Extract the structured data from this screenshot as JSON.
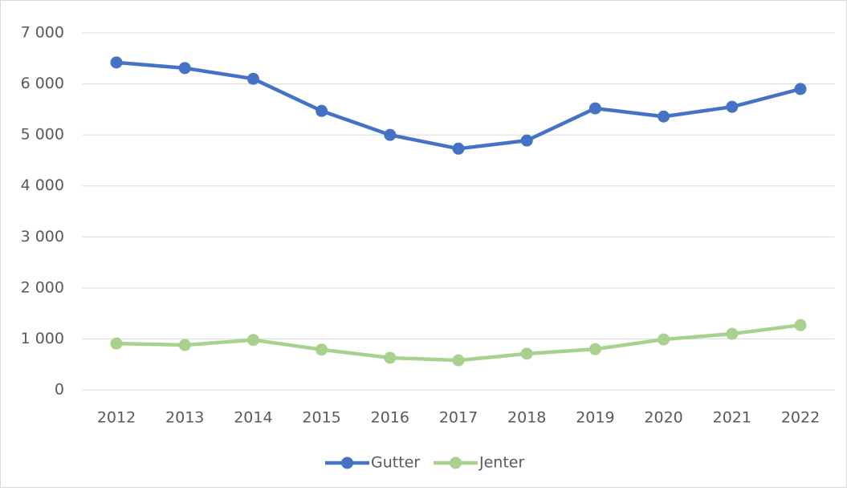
{
  "chart_data": {
    "type": "line",
    "categories": [
      "2012",
      "2013",
      "2014",
      "2015",
      "2016",
      "2017",
      "2018",
      "2019",
      "2020",
      "2021",
      "2022"
    ],
    "series": [
      {
        "name": "Gutter",
        "color": "#4472c4",
        "values": [
          6420,
          6310,
          6100,
          5470,
          5000,
          4730,
          4890,
          5520,
          5360,
          5550,
          5900
        ]
      },
      {
        "name": "Jenter",
        "color": "#a9d18e",
        "values": [
          910,
          880,
          980,
          790,
          630,
          580,
          710,
          800,
          990,
          1100,
          1270
        ]
      }
    ],
    "ylim": [
      0,
      7000
    ],
    "yticks": [
      0,
      {
        "value": 1000,
        "label": "1 000"
      },
      {
        "value": 2000,
        "label": "2 000"
      },
      {
        "value": 3000,
        "label": "3 000"
      },
      {
        "value": 4000,
        "label": "4 000"
      },
      {
        "value": 5000,
        "label": "5 000"
      },
      {
        "value": 6000,
        "label": "6 000"
      },
      {
        "value": 7000,
        "label": "7 000"
      }
    ],
    "grid": true,
    "legend": "bottom"
  }
}
